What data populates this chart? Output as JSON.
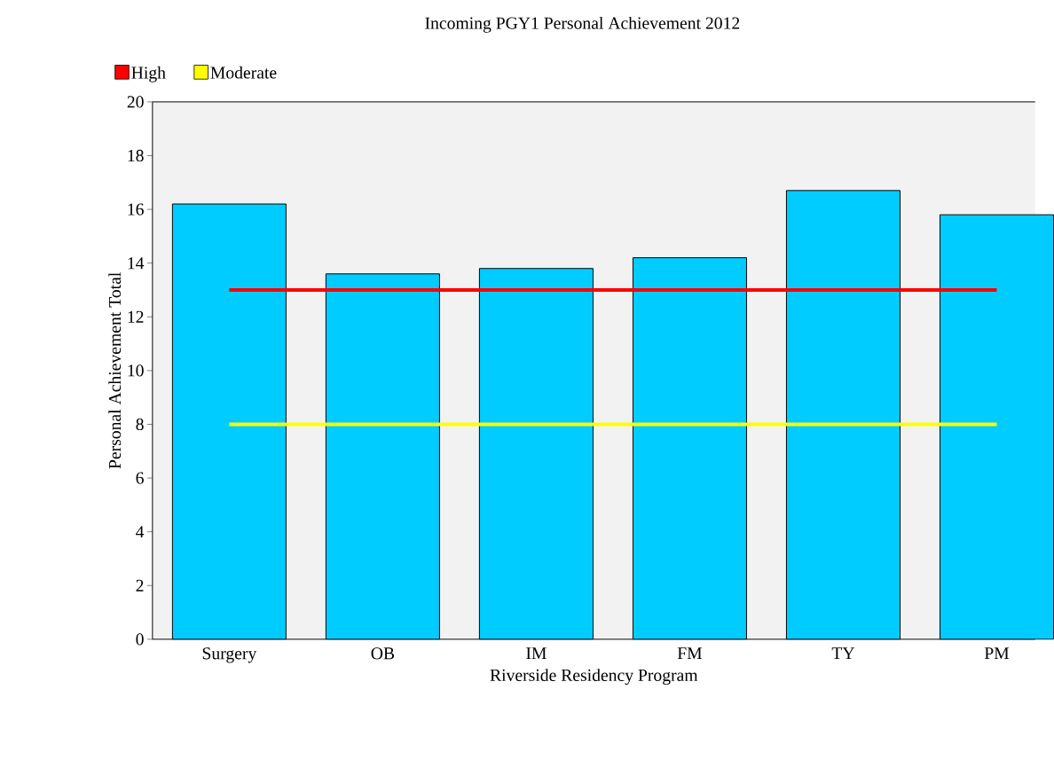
{
  "chart_data": {
    "type": "bar",
    "title": "Incoming PGY1 Personal Achievement 2012",
    "xlabel": "Riverside Residency Program",
    "ylabel": "Personal Achievement Total",
    "categories": [
      "Surgery",
      "OB",
      "IM",
      "FM",
      "TY",
      "PM"
    ],
    "values": [
      16.2,
      13.6,
      13.8,
      14.2,
      16.7,
      15.8
    ],
    "color": "#00ccff",
    "ylim": [
      0,
      20
    ],
    "yticks": [
      0,
      2,
      4,
      6,
      8,
      10,
      12,
      14,
      16,
      18,
      20
    ],
    "ref_lines": [
      {
        "axis": "y",
        "value": 13,
        "label": "High",
        "color": "#ff0000"
      },
      {
        "axis": "y",
        "value": 8,
        "label": "Moderate",
        "color": "#ffff00"
      }
    ],
    "legend": "top left"
  }
}
